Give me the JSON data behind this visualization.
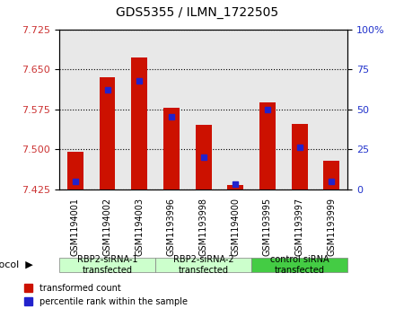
{
  "title": "GDS5355 / ILMN_1722505",
  "samples": [
    "GSM1194001",
    "GSM1194002",
    "GSM1194003",
    "GSM1193996",
    "GSM1193998",
    "GSM1194000",
    "GSM1193995",
    "GSM1193997",
    "GSM1193999"
  ],
  "red_values": [
    7.495,
    7.635,
    7.672,
    7.578,
    7.545,
    7.432,
    7.588,
    7.548,
    7.478
  ],
  "blue_values": [
    5,
    62,
    68,
    45,
    20,
    3,
    50,
    26,
    5
  ],
  "ymin": 7.425,
  "ymax": 7.725,
  "yticks": [
    7.425,
    7.5,
    7.575,
    7.65,
    7.725
  ],
  "y2min": 0,
  "y2max": 100,
  "y2ticks": [
    0,
    25,
    50,
    75,
    100
  ],
  "groups": [
    {
      "label": "RBP2-siRNA-1\ntransfected",
      "start": 0,
      "end": 3,
      "color": "#ccffcc"
    },
    {
      "label": "RBP2-siRNA-2\ntransfected",
      "start": 3,
      "end": 6,
      "color": "#ccffcc"
    },
    {
      "label": "control siRNA\ntransfected",
      "start": 6,
      "end": 9,
      "color": "#44cc44"
    }
  ],
  "bar_color": "#cc1100",
  "blue_color": "#2222cc",
  "bar_width": 0.5,
  "left_color": "#cc3333",
  "right_color": "#2233cc",
  "bg_color": "#ffffff",
  "plot_bg": "#e8e8e8"
}
